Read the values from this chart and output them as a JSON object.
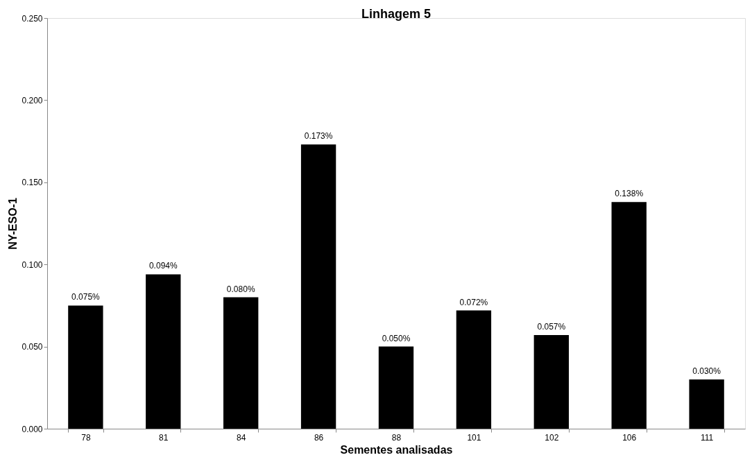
{
  "chart_data": {
    "type": "bar",
    "title": "Linhagem 5",
    "xlabel": "Sementes analisadas",
    "ylabel": "NY-ESO-1",
    "categories": [
      "78",
      "81",
      "84",
      "86",
      "88",
      "101",
      "102",
      "106",
      "111"
    ],
    "values": [
      0.075,
      0.094,
      0.08,
      0.173,
      0.05,
      0.072,
      0.057,
      0.138,
      0.03
    ],
    "value_labels": [
      "0.075%",
      "0.094%",
      "0.080%",
      "0.173%",
      "0.050%",
      "0.072%",
      "0.057%",
      "0.138%",
      "0.030%"
    ],
    "color": "#000000",
    "ylim": [
      0,
      0.25
    ],
    "yticks": [
      {
        "value": 0,
        "label": "0.000"
      },
      {
        "value": 0.05,
        "label": "0.050"
      },
      {
        "value": 0.1,
        "label": "0.100"
      },
      {
        "value": 0.15,
        "label": "0.150"
      },
      {
        "value": 0.2,
        "label": "0.200"
      },
      {
        "value": 0.25,
        "label": "0.250"
      }
    ],
    "grid": false
  }
}
